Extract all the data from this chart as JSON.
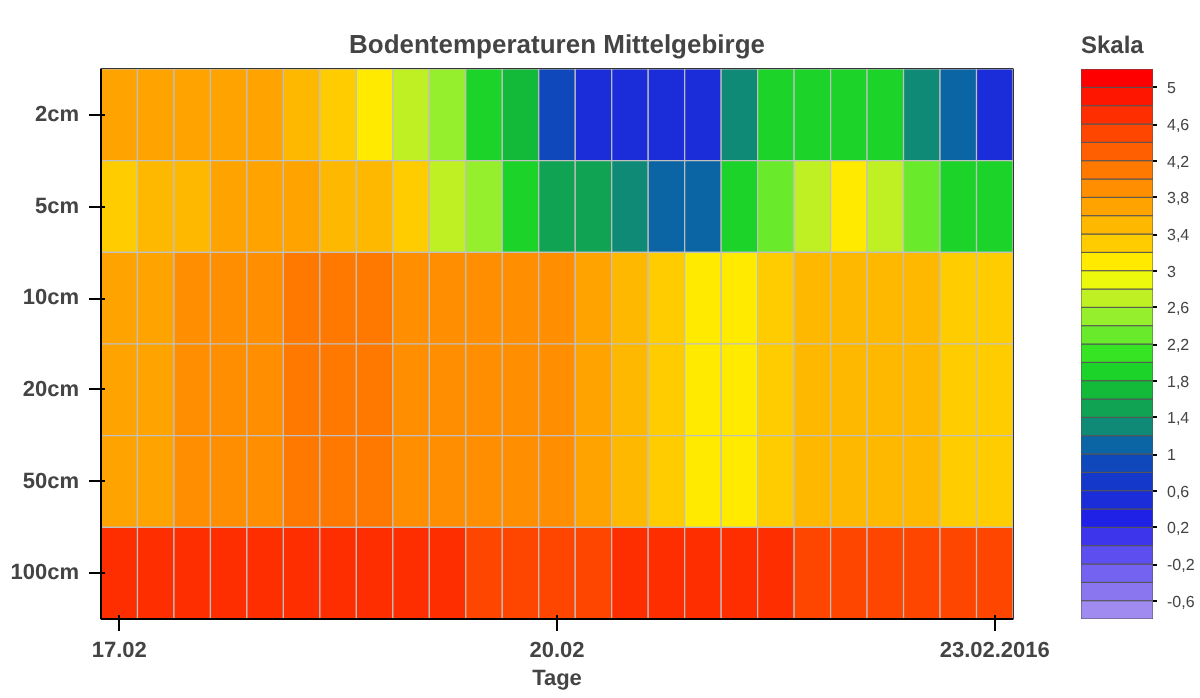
{
  "chart_data": {
    "type": "heatmap",
    "title": "Bodentemperaturen Mittelgebirge",
    "xlabel": "Tage",
    "clabel": "Skala",
    "categories": [
      "17.02",
      null,
      null,
      null,
      null,
      null,
      null,
      null,
      null,
      null,
      null,
      null,
      "20.02",
      null,
      null,
      null,
      null,
      null,
      null,
      null,
      null,
      null,
      null,
      null,
      "23.02.2016"
    ],
    "y_categories": [
      "2cm",
      "5cm",
      "10cm",
      "20cm",
      "50cm",
      "100cm"
    ],
    "cells": [
      [
        3.6,
        3.6,
        3.6,
        3.6,
        3.6,
        3.4,
        3.2,
        3.0,
        2.8,
        2.4,
        2.0,
        1.6,
        0.8,
        0.4,
        0.4,
        0.4,
        0.6,
        1.2,
        1.8,
        2.0,
        2.0,
        1.8,
        1.2,
        1.0,
        0.6
      ],
      [
        3.2,
        3.4,
        3.4,
        3.6,
        3.6,
        3.6,
        3.4,
        3.4,
        3.2,
        2.8,
        2.4,
        2.0,
        1.4,
        1.4,
        1.2,
        1.0,
        1.0,
        1.8,
        2.2,
        2.6,
        3.0,
        2.6,
        2.2,
        2.0,
        2.0
      ],
      [
        3.6,
        3.6,
        3.8,
        3.8,
        3.8,
        4.0,
        4.0,
        4.0,
        3.8,
        3.8,
        3.8,
        3.8,
        3.8,
        3.6,
        3.4,
        3.2,
        3.0,
        3.0,
        3.2,
        3.4,
        3.4,
        3.4,
        3.4,
        3.2,
        3.2
      ],
      [
        3.6,
        3.6,
        3.8,
        3.8,
        3.8,
        4.0,
        4.0,
        4.0,
        3.8,
        3.8,
        3.8,
        3.8,
        3.8,
        3.6,
        3.4,
        3.2,
        3.0,
        3.0,
        3.2,
        3.4,
        3.4,
        3.4,
        3.4,
        3.2,
        3.2
      ],
      [
        3.6,
        3.6,
        3.8,
        3.8,
        3.8,
        4.0,
        4.0,
        4.0,
        3.8,
        3.8,
        3.8,
        3.8,
        3.8,
        3.6,
        3.4,
        3.2,
        3.0,
        3.0,
        3.2,
        3.4,
        3.4,
        3.4,
        3.4,
        3.2,
        3.2
      ],
      [
        4.8,
        4.8,
        4.8,
        4.8,
        4.8,
        4.8,
        4.8,
        4.8,
        4.8,
        4.8,
        4.6,
        4.6,
        4.6,
        4.6,
        4.8,
        4.8,
        4.8,
        4.8,
        4.8,
        4.6,
        4.6,
        4.6,
        4.4,
        4.4,
        4.4
      ]
    ],
    "clim": [
      -0.8,
      5.2
    ],
    "cticks": [
      {
        "value": 5,
        "label": "5"
      },
      {
        "value": 4.6,
        "label": "4,6"
      },
      {
        "value": 4.2,
        "label": "4,2"
      },
      {
        "value": 3.8,
        "label": "3,8"
      },
      {
        "value": 3.4,
        "label": "3,4"
      },
      {
        "value": 3,
        "label": "3"
      },
      {
        "value": 2.6,
        "label": "2,6"
      },
      {
        "value": 2.2,
        "label": "2,2"
      },
      {
        "value": 1.8,
        "label": "1,8"
      },
      {
        "value": 1.4,
        "label": "1,4"
      },
      {
        "value": 1,
        "label": "1"
      },
      {
        "value": 0.6,
        "label": "0,6"
      },
      {
        "value": 0.2,
        "label": "0,2"
      },
      {
        "value": -0.2,
        "label": "-0,2"
      },
      {
        "value": -0.6,
        "label": "-0,6"
      }
    ]
  }
}
